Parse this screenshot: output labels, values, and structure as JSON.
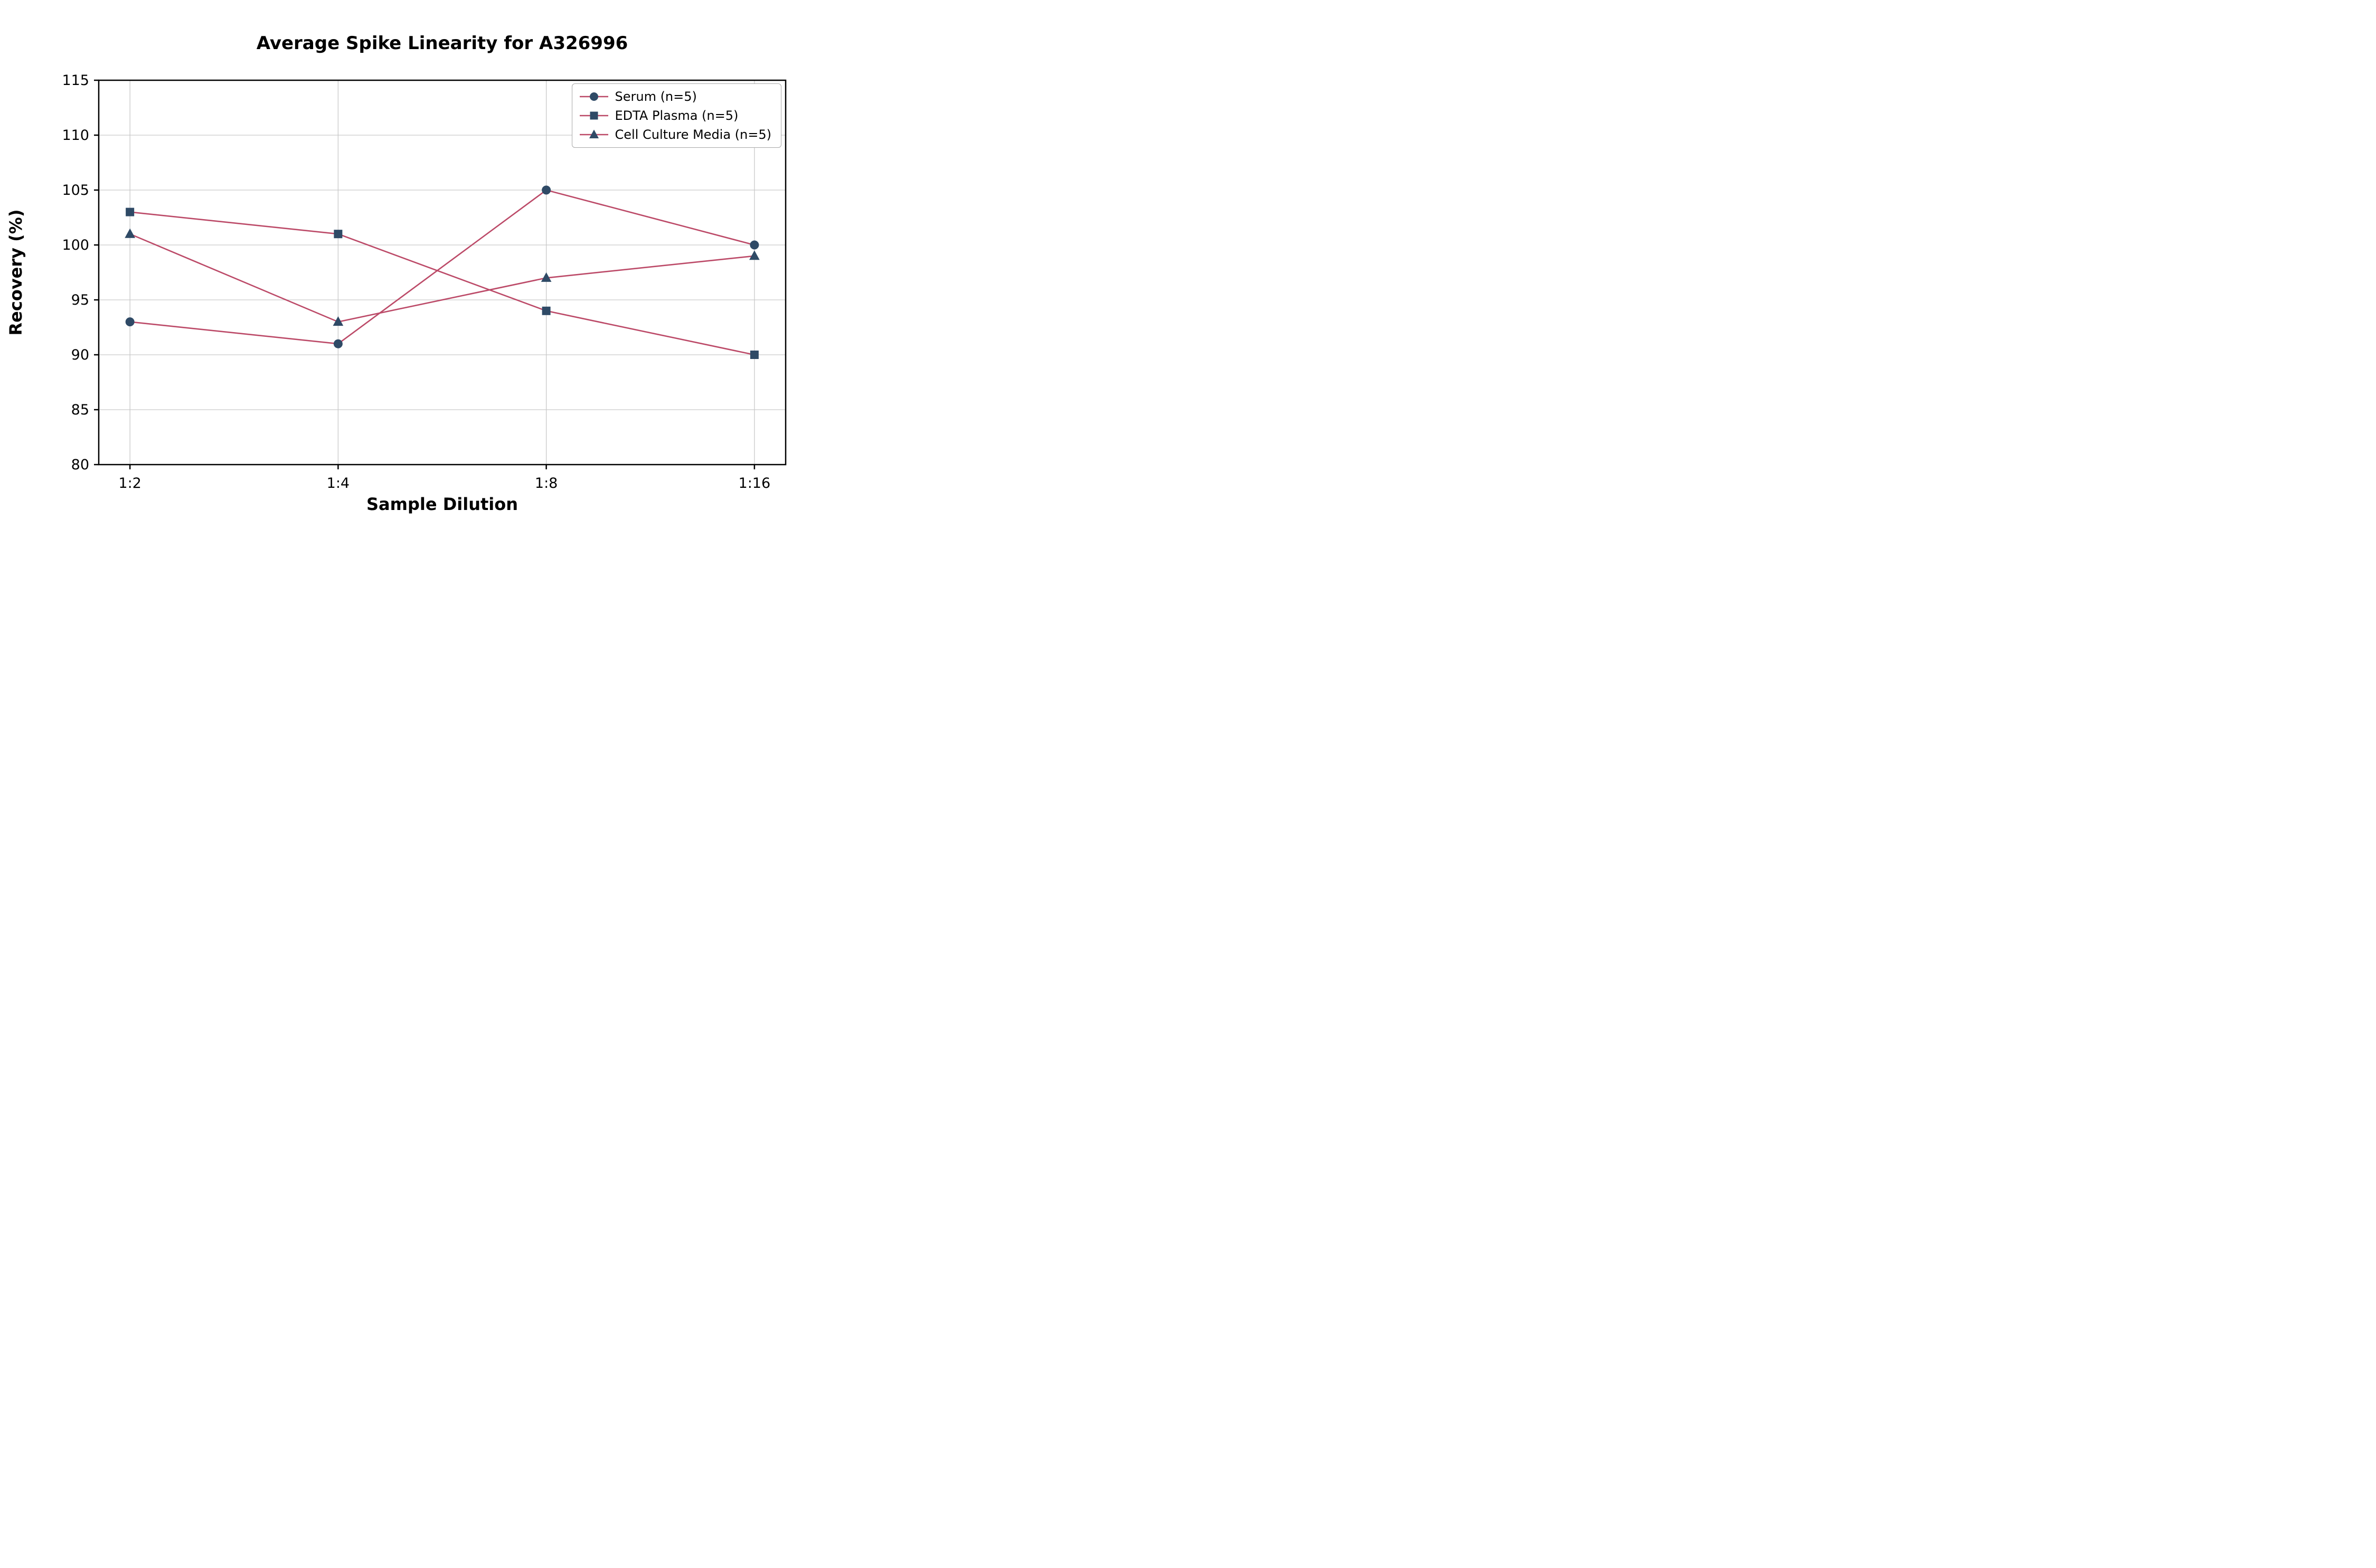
{
  "chart_data": {
    "type": "line",
    "title": "Average Spike Linearity for A326996",
    "xlabel": "Sample Dilution",
    "ylabel": "Recovery (%)",
    "categories": [
      "1:2",
      "1:4",
      "1:8",
      "1:16"
    ],
    "series": [
      {
        "name": "Serum (n=5)",
        "marker": "circle",
        "values": [
          93,
          91,
          105,
          100
        ]
      },
      {
        "name": "EDTA Plasma (n=5)",
        "marker": "square",
        "values": [
          103,
          101,
          94,
          90
        ]
      },
      {
        "name": "Cell Culture Media (n=5)",
        "marker": "triangle",
        "values": [
          101,
          93,
          97,
          99
        ]
      }
    ],
    "ylim": [
      80,
      115
    ],
    "yticks": [
      80,
      85,
      90,
      95,
      100,
      105,
      110,
      115
    ],
    "grid": true,
    "legend_position": "upper right",
    "colors": {
      "line": "#bc4a68",
      "marker": "#2f4a66",
      "grid": "#c9c9c9",
      "axis": "#000000",
      "background": "#ffffff"
    }
  }
}
